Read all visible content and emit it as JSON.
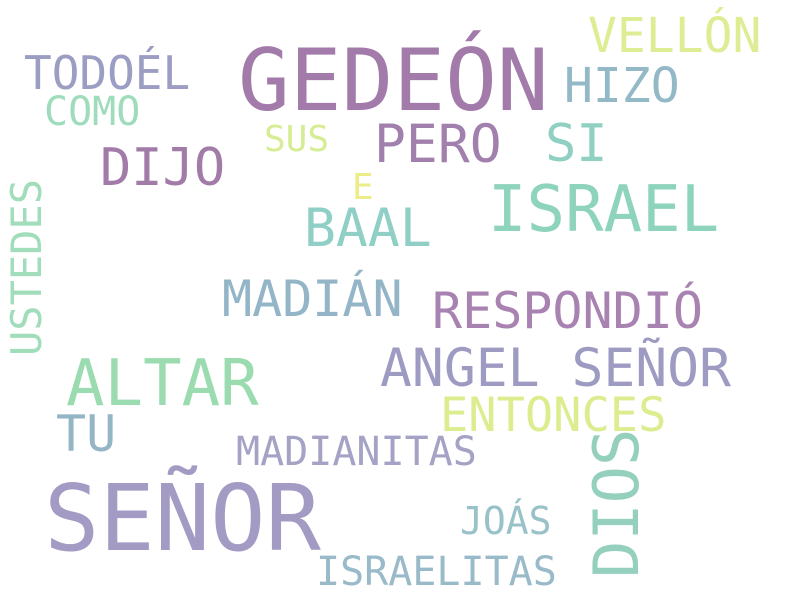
{
  "words": [
    {
      "text": "GEDEÓN",
      "color": "#a27bab"
    },
    {
      "text": "SEÑOR",
      "color": "#a39bc4"
    },
    {
      "text": "ISRAEL",
      "color": "#8ed3bb"
    },
    {
      "text": "ALTAR",
      "color": "#9adbb0"
    },
    {
      "text": "ANGEL SEÑOR",
      "color": "#9e9bc2"
    },
    {
      "text": "RESPONDIÓ",
      "color": "#a882b0"
    },
    {
      "text": "ENTONCES",
      "color": "#dbed8f"
    },
    {
      "text": "MADIÁN",
      "color": "#94b5c7"
    },
    {
      "text": "BAAL",
      "color": "#8fcfc5"
    },
    {
      "text": "PERO",
      "color": "#a280ae"
    },
    {
      "text": "DIJO",
      "color": "#a27ba9"
    },
    {
      "text": "TODOÉL",
      "color": "#9b9dc2"
    },
    {
      "text": "HIZO",
      "color": "#93b9c7"
    },
    {
      "text": "VELLÓN",
      "color": "#dced93"
    },
    {
      "text": "SI",
      "color": "#90d0c2"
    },
    {
      "text": "COMO",
      "color": "#9fdcbc"
    },
    {
      "text": "SUS",
      "color": "#d6ed93"
    },
    {
      "text": "E",
      "color": "#eced89"
    },
    {
      "text": "TU",
      "color": "#93b5c6"
    },
    {
      "text": "MADIANITAS",
      "color": "#a4a2c5"
    },
    {
      "text": "JOÁS",
      "color": "#98c2c8"
    },
    {
      "text": "ISRAELITAS",
      "color": "#99bac9"
    },
    {
      "text": "DIOS",
      "color": "#94d0bd"
    },
    {
      "text": "USTEDES",
      "color": "#a1ddbb"
    }
  ]
}
